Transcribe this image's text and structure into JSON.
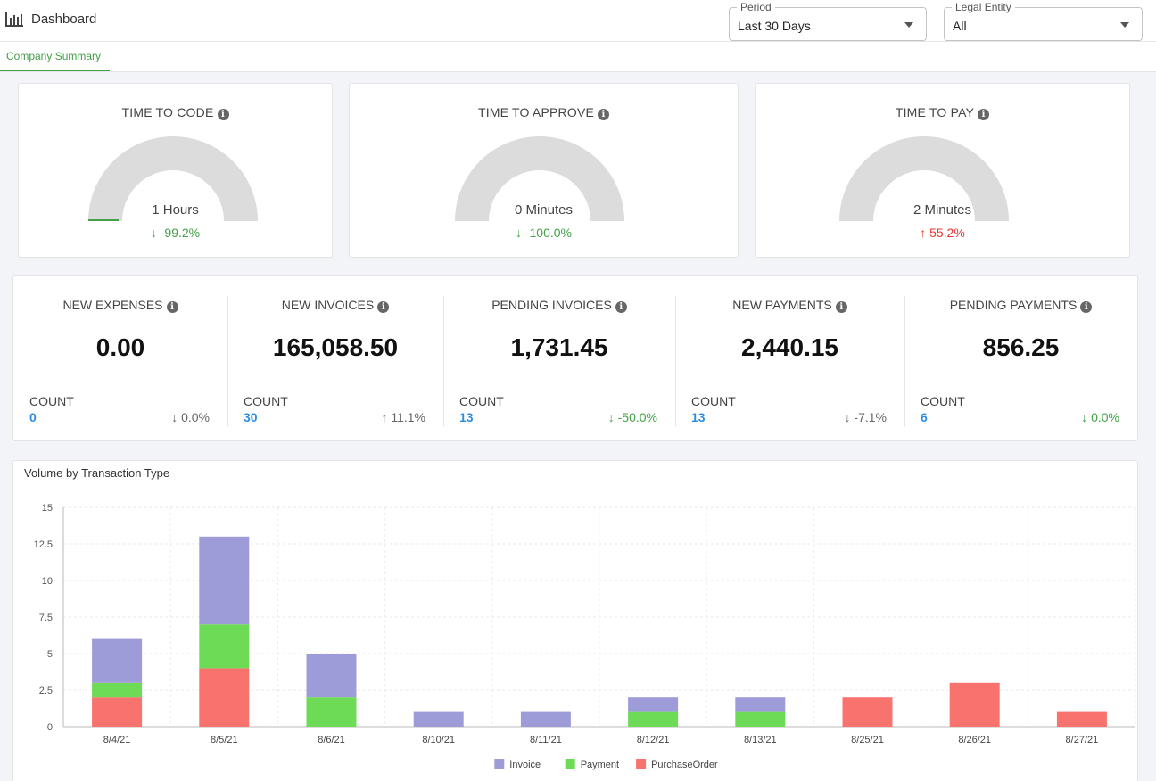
{
  "header": {
    "title": "Dashboard",
    "period": {
      "label": "Period",
      "value": "Last 30 Days"
    },
    "entity": {
      "label": "Legal Entity",
      "value": "All"
    }
  },
  "tabs": [
    {
      "label": "Company Summary"
    }
  ],
  "gauges": [
    {
      "title": "TIME TO CODE",
      "value": "1 Hours",
      "delta": "-99.2%",
      "arrow": "↓",
      "fill": 0.005
    },
    {
      "title": "TIME TO APPROVE",
      "value": "0 Minutes",
      "delta": "-100.0%",
      "arrow": "↓",
      "fill": 0
    },
    {
      "title": "TIME TO PAY",
      "value": "2 Minutes",
      "delta": "55.2%",
      "arrow": "↑",
      "fill": 0
    }
  ],
  "stats": [
    {
      "title": "NEW EXPENSES",
      "amount": "0.00",
      "count_label": "COUNT",
      "count": "0",
      "delta": "0.0%",
      "arrow": "↓"
    },
    {
      "title": "NEW INVOICES",
      "amount": "165,058.50",
      "count_label": "COUNT",
      "count": "30",
      "delta": "11.1%",
      "arrow": "↑"
    },
    {
      "title": "PENDING INVOICES",
      "amount": "1,731.45",
      "count_label": "COUNT",
      "count": "13",
      "delta": "-50.0%",
      "arrow": "↓"
    },
    {
      "title": "NEW PAYMENTS",
      "amount": "2,440.15",
      "count_label": "COUNT",
      "count": "13",
      "delta": "-7.1%",
      "arrow": "↓"
    },
    {
      "title": "PENDING PAYMENTS",
      "amount": "856.25",
      "count_label": "COUNT",
      "count": "6",
      "delta": "0.0%",
      "arrow": "↓"
    }
  ],
  "colors": {
    "accent": "#43a047",
    "link": "#2e8de0",
    "up_red": "#e53935",
    "gauge_track": "#dcdcdc",
    "invoice": "#9d9cd8",
    "payment": "#6edb57",
    "purchase_order": "#f8736e"
  },
  "chart_data": {
    "type": "bar",
    "stacked": true,
    "title": "Volume by Transaction Type",
    "categories": [
      "8/4/21",
      "8/5/21",
      "8/6/21",
      "8/10/21",
      "8/11/21",
      "8/12/21",
      "8/13/21",
      "8/25/21",
      "8/26/21",
      "8/27/21"
    ],
    "series": [
      {
        "name": "PurchaseOrder",
        "values": [
          2,
          4,
          0,
          0,
          0,
          0,
          0,
          2,
          3,
          1
        ]
      },
      {
        "name": "Payment",
        "values": [
          1,
          3,
          2,
          0,
          0,
          1,
          1,
          0,
          0,
          0
        ]
      },
      {
        "name": "Invoice",
        "values": [
          3,
          6,
          3,
          1,
          1,
          1,
          1,
          0,
          0,
          0
        ]
      }
    ],
    "ylim": [
      0,
      15
    ],
    "yticks": [
      "0",
      "2.5",
      "5",
      "7.5",
      "10",
      "12.5",
      "15"
    ],
    "legend": [
      "Invoice",
      "Payment",
      "PurchaseOrder"
    ],
    "legend_position": "bottom-center"
  }
}
